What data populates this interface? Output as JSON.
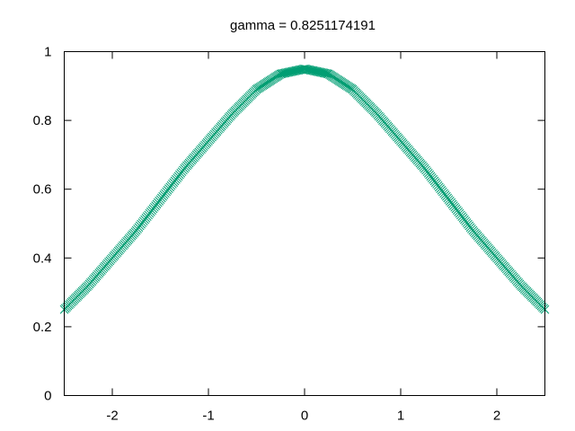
{
  "chart_data": {
    "type": "scatter",
    "title": "gamma = 0.8251174191",
    "xlabel": "",
    "ylabel": "",
    "xlim": [
      -2.5,
      2.5
    ],
    "ylim": [
      0,
      1
    ],
    "x_ticks": [
      -2,
      -1,
      0,
      1,
      2
    ],
    "x_tick_labels": [
      "-2",
      "-1",
      "0",
      "1",
      "2"
    ],
    "y_ticks": [
      0,
      0.2,
      0.4,
      0.6,
      0.8,
      1
    ],
    "y_tick_labels": [
      "0",
      "0.2",
      "0.4",
      "0.6",
      "0.8",
      "1"
    ],
    "grid": false,
    "legend": "none",
    "marker": "x-cross",
    "series": [
      {
        "color": "#009e73",
        "x": [
          -2.5,
          -2.25,
          -2,
          -1.75,
          -1.5,
          -1.25,
          -1,
          -0.75,
          -0.5,
          -0.25,
          0,
          0.25,
          0.5,
          0.75,
          1,
          1.25,
          1.5,
          1.75,
          2,
          2.25,
          2.5
        ],
        "y": [
          0.25,
          0.32,
          0.4,
          0.48,
          0.57,
          0.66,
          0.74,
          0.82,
          0.89,
          0.935,
          0.95,
          0.935,
          0.89,
          0.82,
          0.74,
          0.66,
          0.57,
          0.48,
          0.4,
          0.32,
          0.25
        ]
      }
    ]
  }
}
